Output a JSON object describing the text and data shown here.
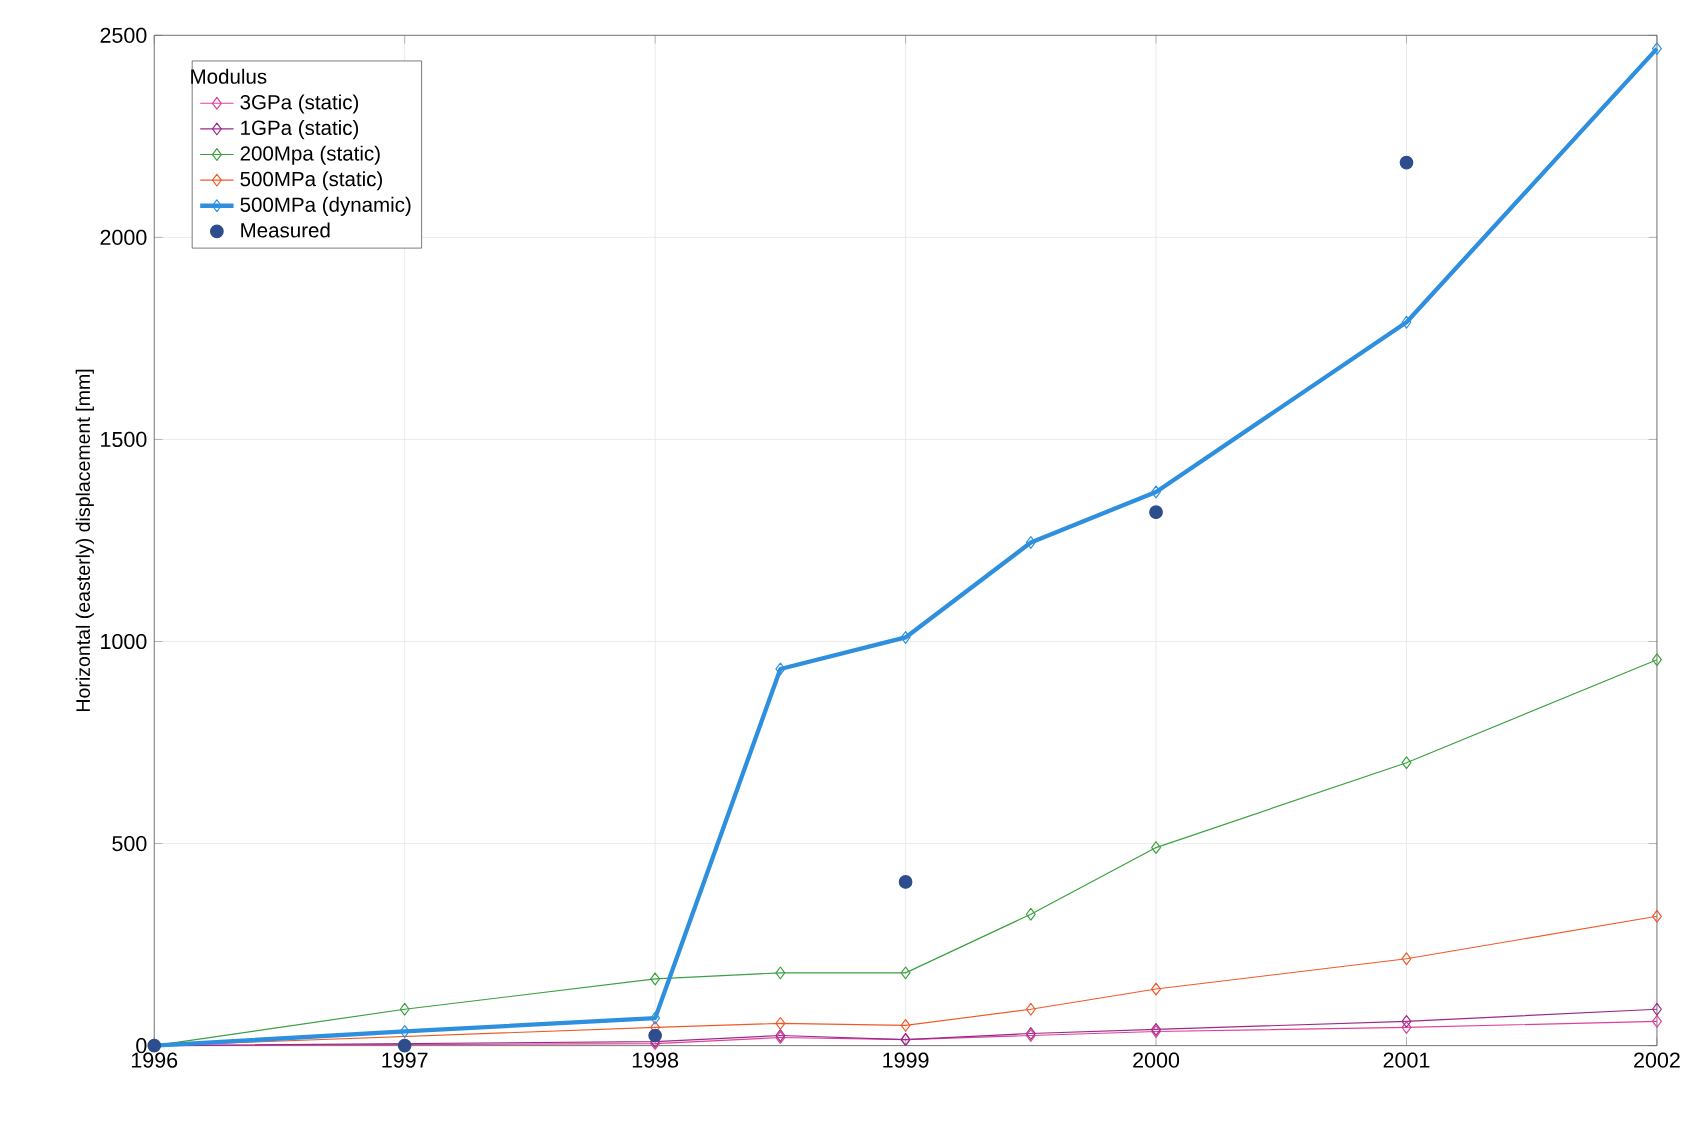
{
  "chart_data": {
    "type": "line",
    "ylabel": "Horizontal (easterly) displacement [mm]",
    "legend_title": "Modulus",
    "xlim": [
      1996,
      2002
    ],
    "ylim": [
      0,
      2500
    ],
    "xticks": [
      1996,
      1997,
      1998,
      1999,
      2000,
      2001,
      2002
    ],
    "yticks": [
      0,
      500,
      1000,
      1500,
      2000,
      2500
    ],
    "grid": true,
    "legend": "top left",
    "series": [
      {
        "name": "3GPa (static)",
        "color": "#e0409a",
        "marker": "diamond",
        "x": [
          1996,
          1998,
          1998.5,
          1999,
          1999.5,
          2000,
          2001,
          2002
        ],
        "values": [
          0,
          5,
          20,
          15,
          25,
          35,
          45,
          60
        ]
      },
      {
        "name": "1GPa (static)",
        "color": "#9a2a8a",
        "marker": "diamond",
        "x": [
          1996,
          1998,
          1998.5,
          1999,
          1999.5,
          2000,
          2001,
          2002
        ],
        "values": [
          0,
          10,
          25,
          15,
          30,
          40,
          60,
          90
        ]
      },
      {
        "name": "200Mpa (static)",
        "color": "#3aa040",
        "marker": "diamond",
        "x": [
          1996,
          1997,
          1998,
          1998.5,
          1999,
          1999.5,
          2000,
          2001,
          2002
        ],
        "values": [
          0,
          90,
          165,
          180,
          180,
          325,
          490,
          700,
          955
        ]
      },
      {
        "name": "500MPa (static)",
        "color": "#f05a28",
        "marker": "diamond",
        "x": [
          1996,
          1998,
          1998.5,
          1999,
          1999.5,
          2000,
          2001,
          2002
        ],
        "values": [
          0,
          45,
          55,
          50,
          90,
          140,
          215,
          320
        ]
      },
      {
        "name": "500MPa (dynamic)",
        "color": "#2f8fdf",
        "marker": "diamond",
        "x": [
          1996,
          1997,
          1998,
          1998.5,
          1999,
          1999.5,
          2000,
          2001,
          2002
        ],
        "values": [
          0,
          35,
          68,
          932,
          1010,
          1245,
          1370,
          1790,
          2467
        ]
      },
      {
        "name": "Measured",
        "type": "scatter",
        "color": "#2d4d8c",
        "marker": "circle",
        "x": [
          1996,
          1997,
          1998,
          1999,
          2000,
          2001
        ],
        "values": [
          0,
          0,
          25,
          405,
          1320,
          2185
        ]
      }
    ]
  }
}
